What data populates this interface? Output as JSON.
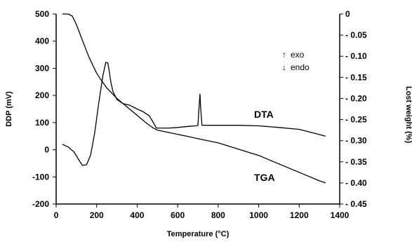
{
  "chart_data": {
    "type": "line",
    "title": "",
    "xlabel": "Temperature (°C)",
    "ylabel_left": "DDP (mV)",
    "ylabel_right": "Lost weight (%)",
    "xlim": [
      0,
      1400
    ],
    "ylim_left": [
      -200,
      500
    ],
    "ylim_right": [
      -0.45,
      0
    ],
    "x_ticks": [
      "0",
      "200",
      "400",
      "600",
      "800",
      "1000",
      "1200",
      "1400"
    ],
    "y_left_ticks": [
      "500",
      "400",
      "300",
      "200",
      "100",
      "0",
      "-100",
      "-200"
    ],
    "y_right_ticks": [
      "0",
      "- 0.05",
      "- 0.10",
      "- 0.15",
      "- 0.20",
      "- 0.25",
      "- 0.30",
      "- 0.35",
      "- 0.40",
      "- 0.45"
    ],
    "grid": false,
    "annotations": [
      {
        "arrow": "↑",
        "text": "exo"
      },
      {
        "arrow": "↓",
        "text": "endo"
      }
    ],
    "series": [
      {
        "name": "DTA",
        "axis": "left",
        "x": [
          30,
          60,
          90,
          110,
          130,
          150,
          170,
          190,
          210,
          230,
          245,
          255,
          262,
          270,
          280,
          300,
          330,
          360,
          400,
          430,
          460,
          480,
          495,
          520,
          560,
          600,
          650,
          690,
          700,
          706,
          710,
          714,
          720,
          740,
          800,
          900,
          1000,
          1100,
          1200,
          1300,
          1330
        ],
        "y": [
          20,
          10,
          -10,
          -35,
          -58,
          -55,
          -20,
          60,
          170,
          270,
          322,
          320,
          290,
          250,
          215,
          185,
          170,
          165,
          150,
          140,
          125,
          100,
          80,
          80,
          80,
          82,
          86,
          88,
          90,
          160,
          205,
          150,
          90,
          90,
          90,
          90,
          88,
          82,
          75,
          56,
          50
        ]
      },
      {
        "name": "TGA",
        "axis": "right",
        "x": [
          30,
          60,
          80,
          100,
          120,
          140,
          160,
          180,
          200,
          220,
          250,
          300,
          350,
          400,
          450,
          480,
          500,
          550,
          600,
          650,
          700,
          750,
          800,
          900,
          1000,
          1100,
          1200,
          1300,
          1330
        ],
        "y": [
          0,
          0,
          -0.005,
          -0.025,
          -0.05,
          -0.075,
          -0.1,
          -0.12,
          -0.14,
          -0.155,
          -0.175,
          -0.2,
          -0.22,
          -0.24,
          -0.26,
          -0.27,
          -0.275,
          -0.28,
          -0.285,
          -0.29,
          -0.295,
          -0.3,
          -0.305,
          -0.32,
          -0.335,
          -0.355,
          -0.375,
          -0.395,
          -0.4
        ]
      }
    ]
  }
}
